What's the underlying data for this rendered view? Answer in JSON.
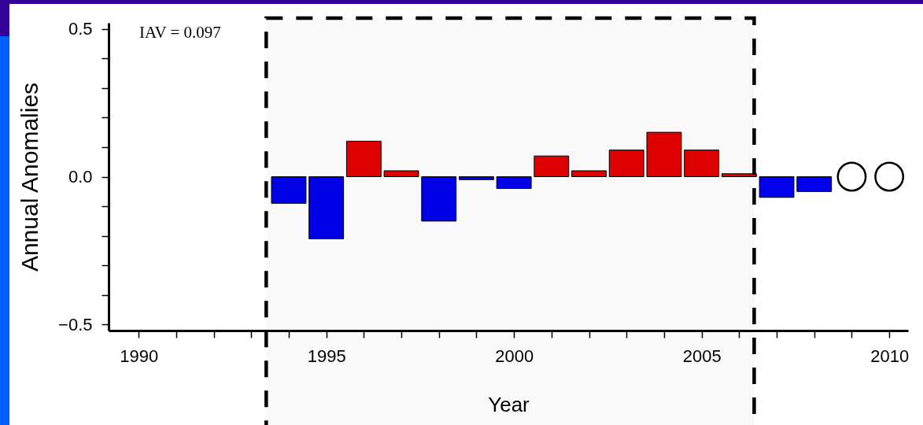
{
  "chart_data": {
    "type": "bar",
    "xlabel": "Year",
    "ylabel": "Annual Anomalies",
    "annotations": [
      "IAV = 0.097"
    ],
    "xlim": [
      1989.2,
      2010.5
    ],
    "ylim": [
      -0.52,
      0.52
    ],
    "xticks": [
      1990,
      {
        "value": 1991,
        "label": null
      },
      {
        "value": 1992,
        "label": null
      },
      {
        "value": 1993,
        "label": null
      },
      {
        "value": 1994,
        "label": null
      },
      1995,
      {
        "value": 1996,
        "label": null
      },
      {
        "value": 1997,
        "label": null
      },
      {
        "value": 1998,
        "label": null
      },
      {
        "value": 1999,
        "label": null
      },
      2000,
      {
        "value": 2001,
        "label": null
      },
      {
        "value": 2002,
        "label": null
      },
      {
        "value": 2003,
        "label": null
      },
      {
        "value": 2004,
        "label": null
      },
      2005,
      {
        "value": 2006,
        "label": null
      },
      {
        "value": 2007,
        "label": null
      },
      {
        "value": 2008,
        "label": null
      },
      {
        "value": 2009,
        "label": null
      },
      2010
    ],
    "yticks": [
      {
        "value": -0.5,
        "label": "−0.5"
      },
      {
        "value": -0.4,
        "label": null
      },
      {
        "value": -0.3,
        "label": null
      },
      {
        "value": -0.2,
        "label": null
      },
      {
        "value": -0.1,
        "label": null
      },
      {
        "value": 0,
        "label": "0.0"
      },
      {
        "value": 0.1,
        "label": null
      },
      {
        "value": 0.2,
        "label": null
      },
      {
        "value": 0.3,
        "label": null
      },
      {
        "value": 0.4,
        "label": null
      },
      0.5
    ],
    "series": [
      {
        "x": [
          1994,
          1995,
          1996,
          1997,
          1998,
          1999,
          2000,
          2001,
          2002,
          2003,
          2004,
          2005,
          2006,
          2007,
          2008
        ],
        "values": [
          -0.09,
          -0.21,
          0.12,
          0.02,
          -0.15,
          -0.01,
          -0.04,
          0.07,
          0.02,
          0.09,
          0.15,
          0.09,
          0.01,
          -0.07,
          -0.05
        ],
        "colors": [
          "#0000ee",
          "#0000ee",
          "#e50000",
          "#e50000",
          "#0000ee",
          "#0000ee",
          "#0000ee",
          "#e50000",
          "#e50000",
          "#e50000",
          "#e50000",
          "#e50000",
          "#e50000",
          "#0000ee",
          "#0000ee"
        ]
      },
      {
        "type": "scatter",
        "x": [
          2009,
          2010
        ],
        "values": [
          0,
          0
        ],
        "color": "#000000",
        "marker": "circle"
      }
    ],
    "bands": [
      {
        "axis": "x",
        "from": 1993.4,
        "to": 2006.4,
        "color": "#000000"
      }
    ]
  }
}
